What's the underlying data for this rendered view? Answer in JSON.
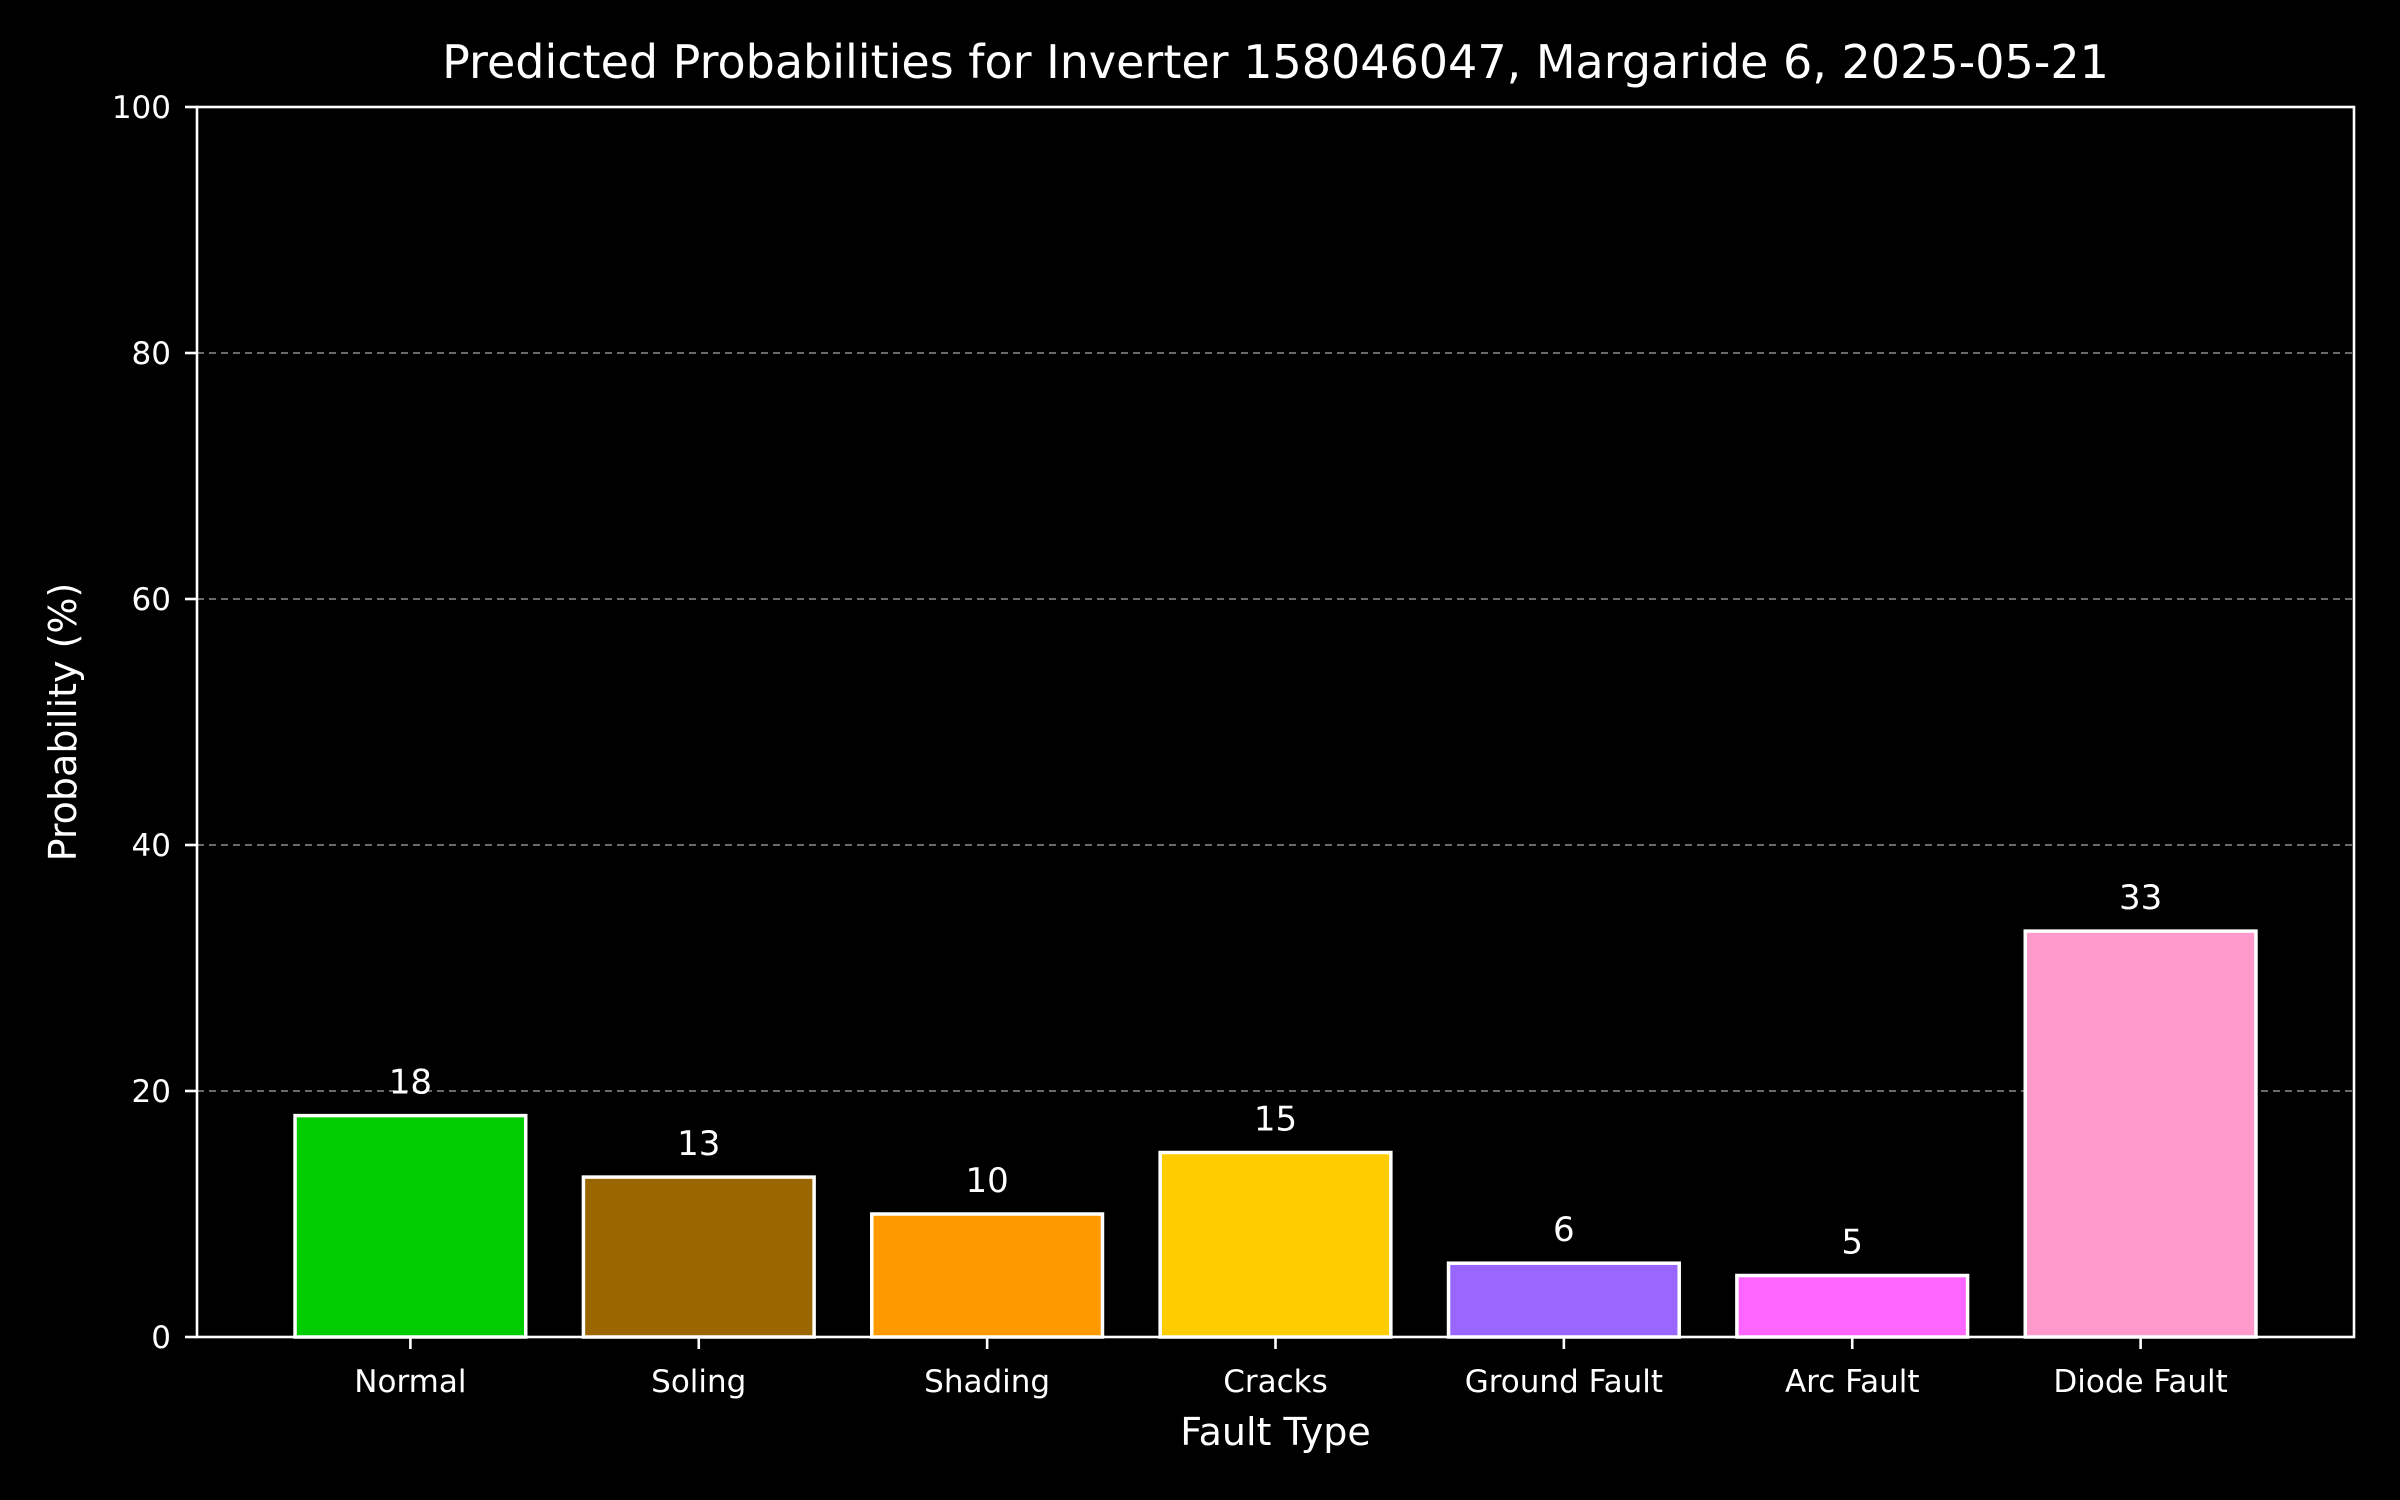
{
  "chart_data": {
    "type": "bar",
    "title": "Predicted Probabilities for Inverter 158046047, Margaride 6, 2025-05-21",
    "xlabel": "Fault Type",
    "ylabel": "Probability (%)",
    "ylim": [
      0,
      100
    ],
    "yticks": [
      0,
      20,
      40,
      60,
      80,
      100
    ],
    "grid": "y-dashed",
    "categories": [
      "Normal",
      "Soling",
      "Shading",
      "Cracks",
      "Ground Fault",
      "Arc Fault",
      "Diode Fault"
    ],
    "values": [
      18,
      13,
      10,
      15,
      6,
      5,
      33
    ],
    "data_labels": [
      "18",
      "13",
      "10",
      "15",
      "6",
      "5",
      "33"
    ],
    "colors": [
      "#00cc00",
      "#996600",
      "#ff9900",
      "#ffcc00",
      "#9966ff",
      "#ff66ff",
      "#ff99cc"
    ],
    "background": "#000000",
    "foreground": "#ffffff"
  }
}
